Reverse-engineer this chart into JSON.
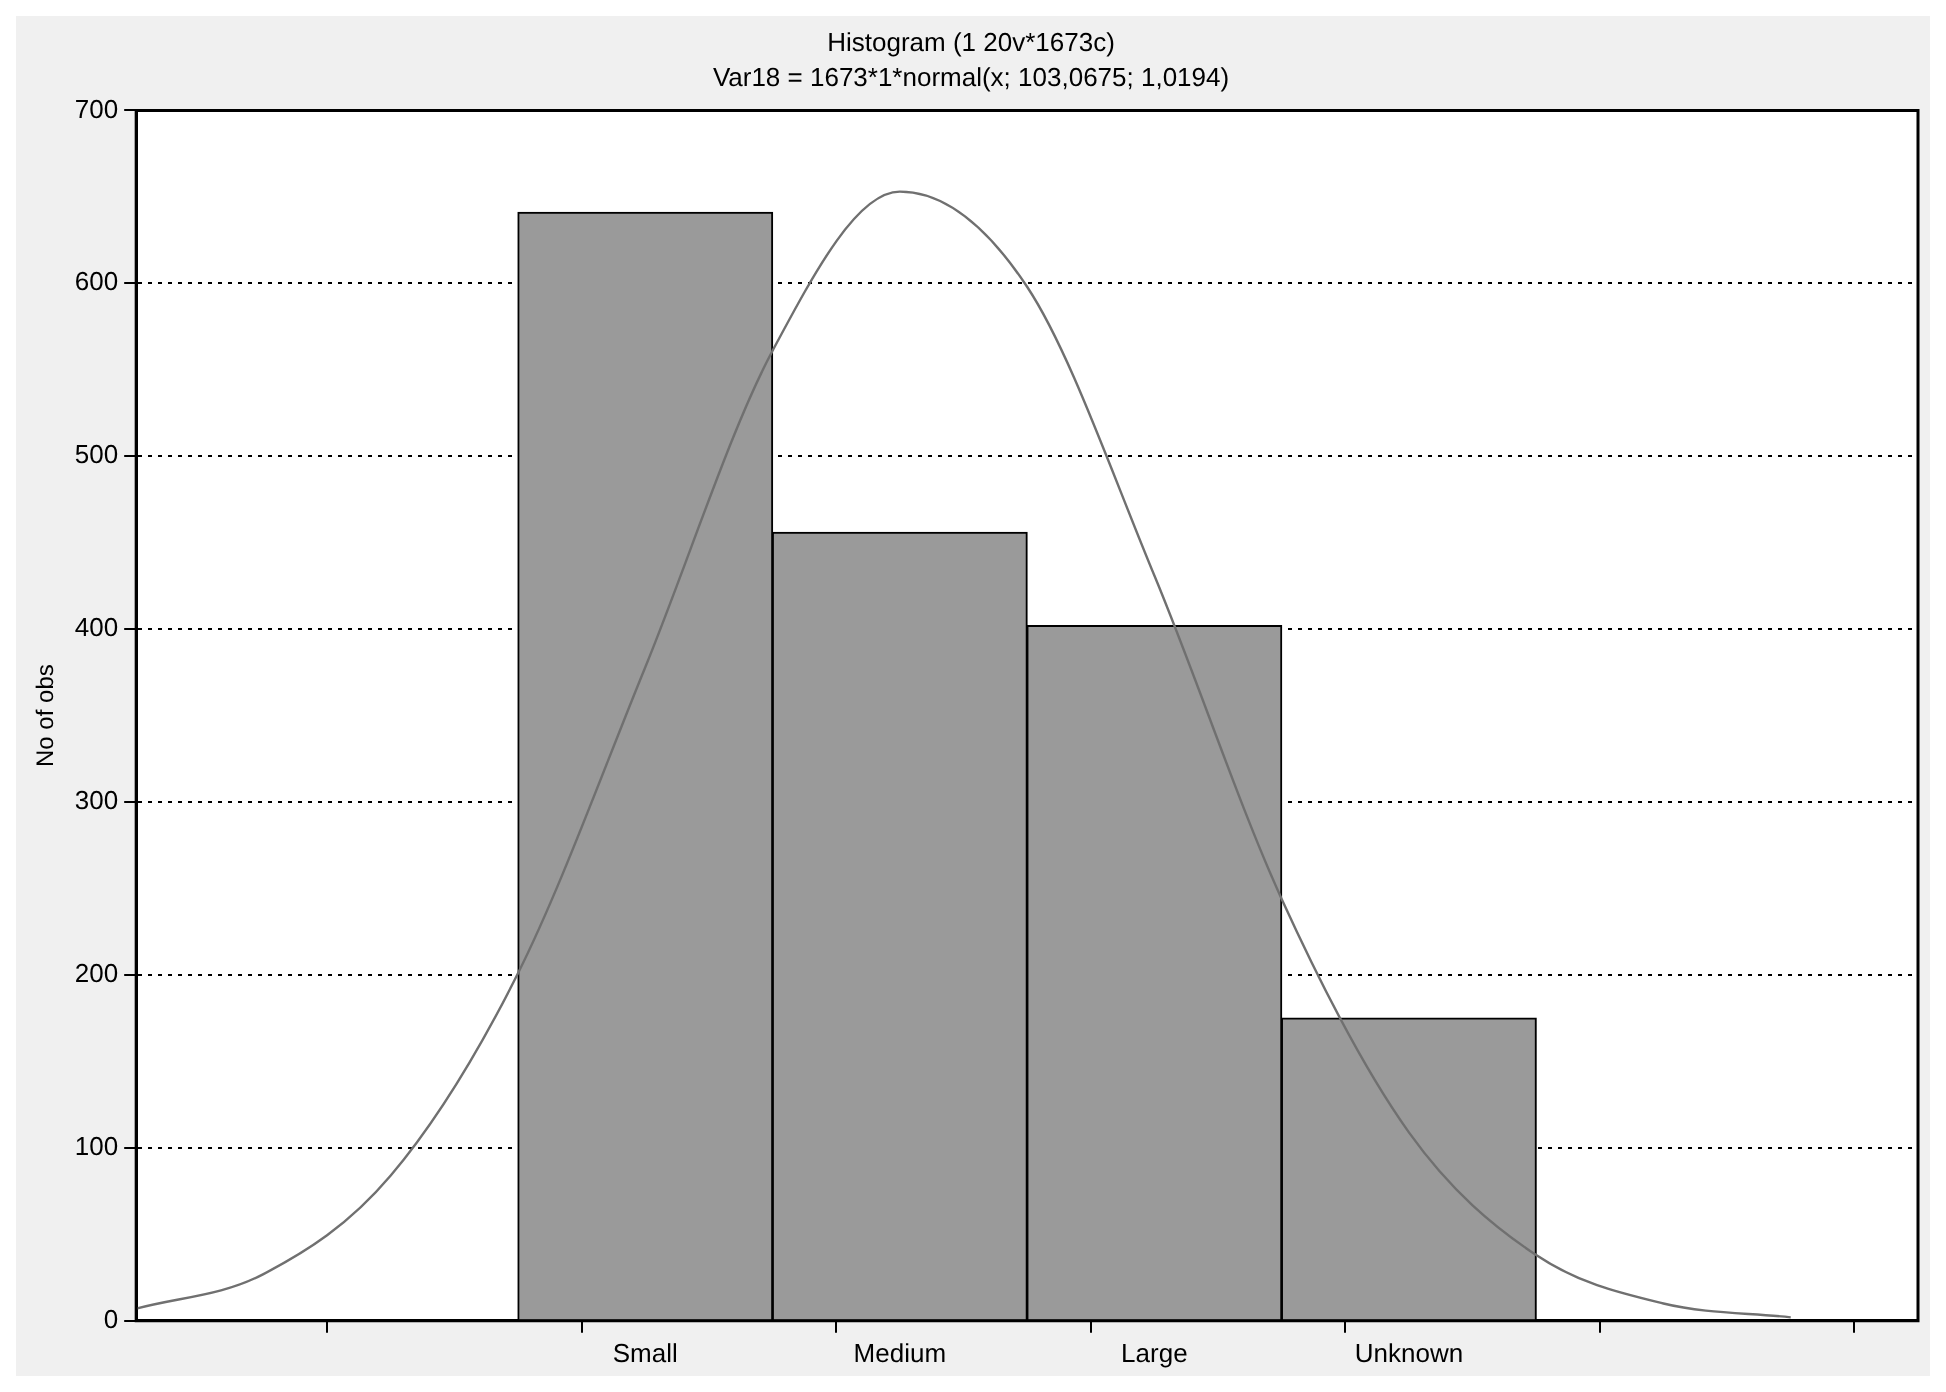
{
  "chart_data": {
    "type": "bar",
    "title": "Histogram (1 20v*1673c)",
    "subtitle": "Var18 = 1673*1*normal(x; 103,0675; 1,0194)",
    "ylabel": "No of obs",
    "categories": [
      null,
      null,
      null,
      null,
      "Small",
      null,
      "Medium",
      null,
      "Large",
      null,
      "Unknown",
      null,
      null,
      null,
      null
    ],
    "values": [
      null,
      null,
      null,
      null,
      641,
      null,
      456,
      null,
      402,
      null,
      175,
      null,
      null,
      null,
      null
    ],
    "color": "#9a9a9a",
    "series": [
      {
        "type": "line",
        "color": "#707070",
        "values": [
          7,
          27,
          84,
          201,
          378,
          561,
          653,
          598,
          431,
          244,
          109,
          38,
          10,
          2,
          null
        ]
      }
    ],
    "ylim": [
      0,
      700
    ],
    "yticks": [
      0,
      100,
      200,
      300,
      400,
      500,
      600,
      700
    ],
    "grid": "y",
    "legend": false,
    "marker": "none",
    "line_style": "solid"
  }
}
